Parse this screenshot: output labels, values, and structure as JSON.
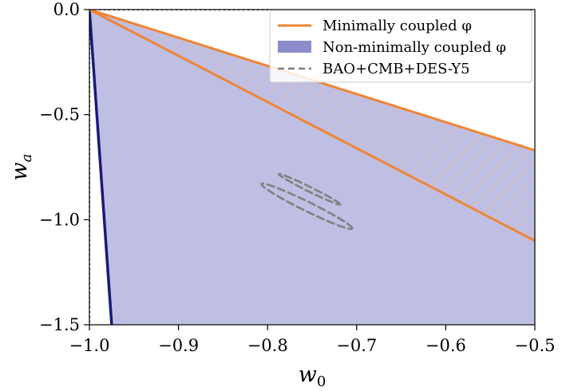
{
  "chart_data": {
    "type": "area",
    "xlabel": "w",
    "xlabel_sub": "0",
    "ylabel": "w",
    "ylabel_sub": "a",
    "xlim": [
      -1.0,
      -0.5
    ],
    "ylim": [
      -1.5,
      0.0
    ],
    "xticks": [
      -1.0,
      -0.9,
      -0.8,
      -0.7,
      -0.6,
      -0.5
    ],
    "xtick_labels": [
      "−1.0",
      "−0.9",
      "−0.8",
      "−0.7",
      "−0.6",
      "−0.5"
    ],
    "yticks": [
      0.0,
      -0.5,
      -1.0,
      -1.5
    ],
    "ytick_labels": [
      "0.0",
      "−0.5",
      "−1.0",
      "−1.5"
    ],
    "grid": false,
    "legend_position": "top-right",
    "series": [
      {
        "name": "Minimally coupled φ",
        "kind": "wedge-boundary-lines",
        "color": "#f08536",
        "x": [
          -1.0,
          -0.5
        ],
        "upper_y": [
          0.0,
          -0.67
        ],
        "lower_y": [
          0.0,
          -1.1
        ]
      },
      {
        "name": "Non-minimally coupled φ",
        "kind": "filled-region",
        "color": "#8080c8",
        "edge_color": "#1a1a7a",
        "polygon": [
          [
            -1.0,
            0.0
          ],
          [
            -0.5,
            -0.67
          ],
          [
            -0.5,
            -1.5
          ],
          [
            -0.975,
            -1.5
          ]
        ]
      },
      {
        "name": "BAO+CMB+DES-Y5",
        "kind": "confidence-contours",
        "color": "#808080",
        "contours": [
          {
            "level": "inner",
            "center": [
              -0.753,
              -0.855
            ],
            "semi_major": 0.42,
            "semi_minor": 0.034,
            "angle_deg": -35,
            "note": "angle measured in w0 (0.1) vs wa (0.3) unit-scaled space"
          },
          {
            "level": "outer",
            "center": [
              -0.756,
              -0.936
            ],
            "semi_major": 0.62,
            "semi_minor": 0.068,
            "angle_deg": -35,
            "note": "angle measured in w0 (0.1) vs wa (0.3) unit-scaled space"
          }
        ]
      }
    ],
    "reference_lines": [
      {
        "orientation": "vertical",
        "x": -1.0,
        "style": "dotted",
        "color": "#000000"
      },
      {
        "orientation": "horizontal",
        "y": 0.0,
        "style": "dotted",
        "color": "#000000"
      }
    ]
  }
}
